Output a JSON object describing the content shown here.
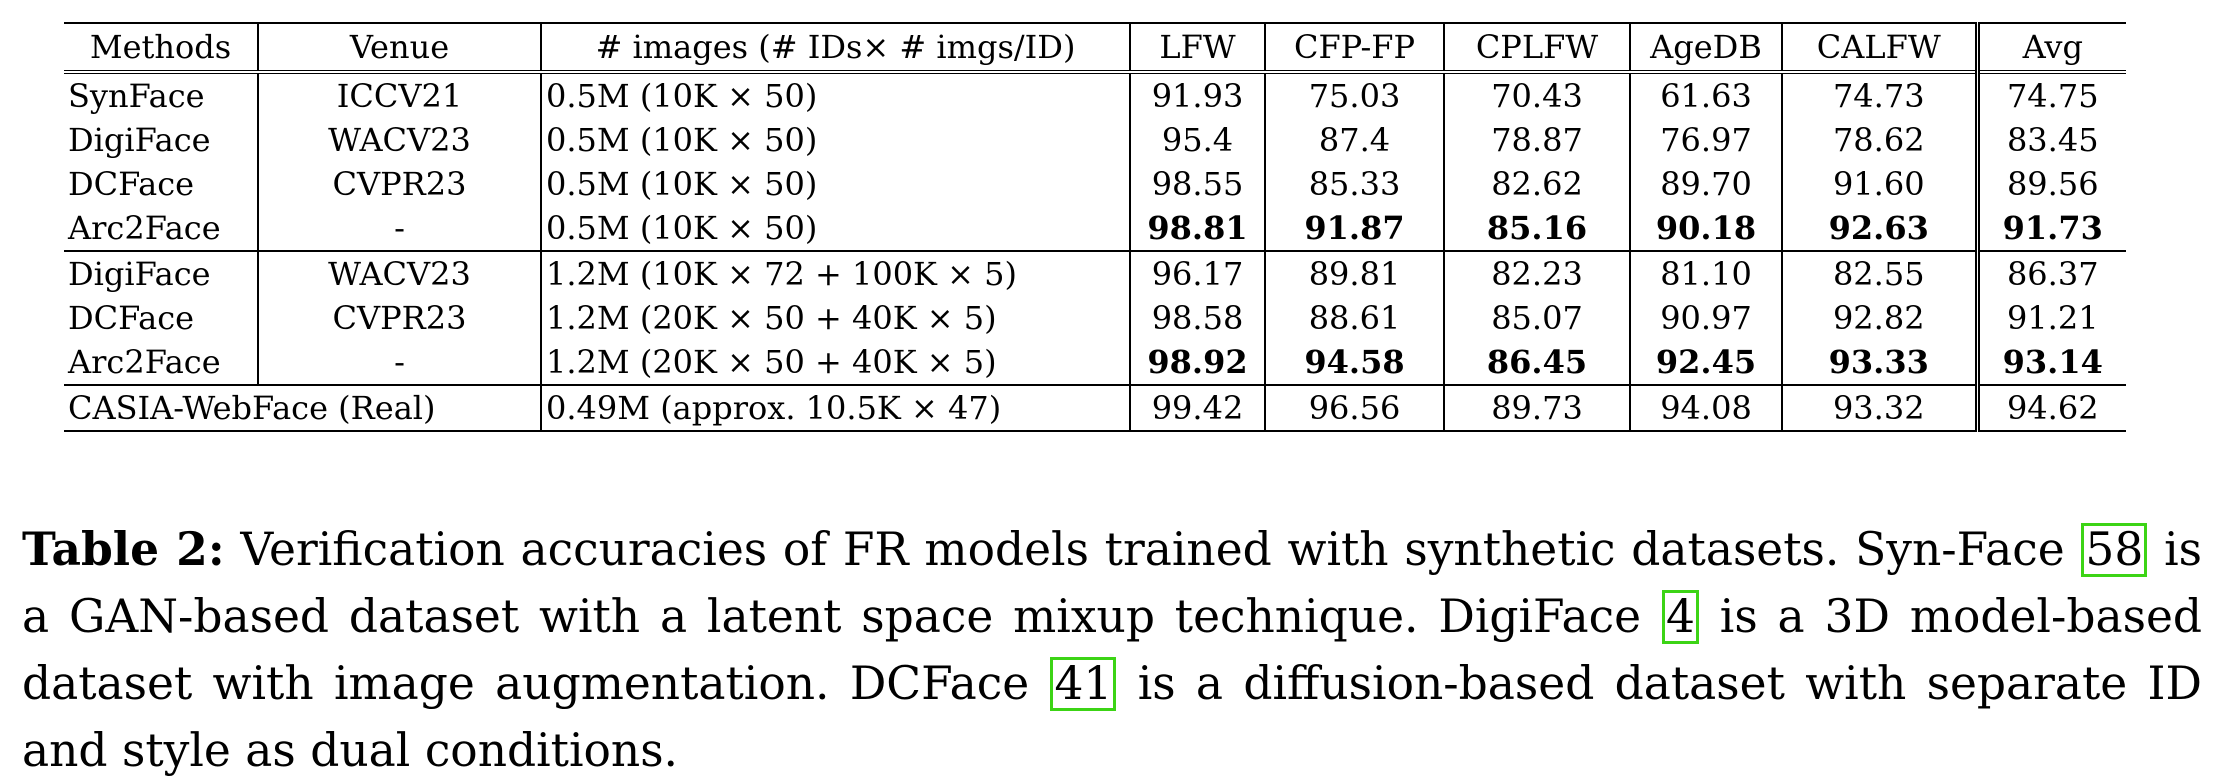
{
  "table": {
    "headers": [
      "Methods",
      "Venue",
      "# images (# IDs× # imgs/ID)",
      "LFW",
      "CFP-FP",
      "CPLFW",
      "AgeDB",
      "CALFW",
      "Avg"
    ],
    "groups": [
      [
        {
          "method": "SynFace",
          "venue": "ICCV21",
          "images": "0.5M (10K × 50)",
          "lfw": "91.93",
          "cfpfp": "75.03",
          "cplfw": "70.43",
          "agedb": "61.63",
          "calfw": "74.73",
          "avg": "74.75",
          "bold": false
        },
        {
          "method": "DigiFace",
          "venue": "WACV23",
          "images": "0.5M (10K × 50)",
          "lfw": "95.4",
          "cfpfp": "87.4",
          "cplfw": "78.87",
          "agedb": "76.97",
          "calfw": "78.62",
          "avg": "83.45",
          "bold": false
        },
        {
          "method": "DCFace",
          "venue": "CVPR23",
          "images": "0.5M (10K × 50)",
          "lfw": "98.55",
          "cfpfp": "85.33",
          "cplfw": "82.62",
          "agedb": "89.70",
          "calfw": "91.60",
          "avg": "89.56",
          "bold": false
        },
        {
          "method": "Arc2Face",
          "venue": "-",
          "images": "0.5M (10K × 50)",
          "lfw": "98.81",
          "cfpfp": "91.87",
          "cplfw": "85.16",
          "agedb": "90.18",
          "calfw": "92.63",
          "avg": "91.73",
          "bold": true
        }
      ],
      [
        {
          "method": "DigiFace",
          "venue": "WACV23",
          "images": "1.2M (10K × 72 + 100K × 5)",
          "lfw": "96.17",
          "cfpfp": "89.81",
          "cplfw": "82.23",
          "agedb": "81.10",
          "calfw": "82.55",
          "avg": "86.37",
          "bold": false
        },
        {
          "method": "DCFace",
          "venue": "CVPR23",
          "images": "1.2M (20K × 50 + 40K × 5)",
          "lfw": "98.58",
          "cfpfp": "88.61",
          "cplfw": "85.07",
          "agedb": "90.97",
          "calfw": "92.82",
          "avg": "91.21",
          "bold": false
        },
        {
          "method": "Arc2Face",
          "venue": "-",
          "images": "1.2M (20K × 50 + 40K × 5)",
          "lfw": "98.92",
          "cfpfp": "94.58",
          "cplfw": "86.45",
          "agedb": "92.45",
          "calfw": "93.33",
          "avg": "93.14",
          "bold": true
        }
      ]
    ],
    "real_row": {
      "method": "CASIA-WebFace (Real)",
      "images": "0.49M (approx. 10.5K × 47)",
      "lfw": "99.42",
      "cfpfp": "96.56",
      "cplfw": "89.73",
      "agedb": "94.08",
      "calfw": "93.32",
      "avg": "94.62"
    }
  },
  "caption": {
    "label": "Table 2:",
    "text_1": " Verification accuracies of FR models trained with synthetic datasets. Syn-Face ",
    "cite_1": "58",
    "text_2": " is a GAN-based dataset with a latent space mixup technique. DigiFace ",
    "cite_2": "4",
    "text_3": " is a 3D model-based dataset with image augmentation. DCFace ",
    "cite_3": "41",
    "text_4": " is a diffusion-based dataset with separate ID and style as dual conditions."
  },
  "colors": {
    "citation_box": "#3cd415",
    "text": "#000000",
    "background": "#ffffff"
  }
}
